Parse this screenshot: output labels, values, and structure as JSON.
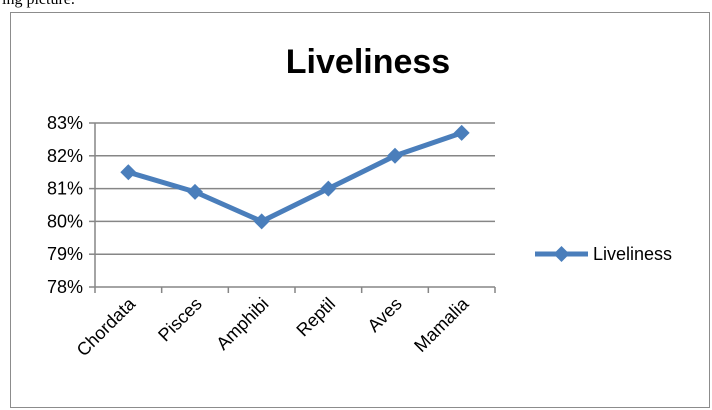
{
  "caption": "ing picture.",
  "chart_data": {
    "type": "line",
    "title": "Liveliness",
    "categories": [
      "Chordata",
      "Pisces",
      "Amphibi",
      "Reptil",
      "Aves",
      "Mamalia"
    ],
    "series": [
      {
        "name": "Liveliness",
        "values": [
          81.5,
          80.9,
          80.0,
          81.0,
          82.0,
          82.7
        ],
        "color": "#4a7ebb"
      }
    ],
    "ylim": [
      78,
      83
    ],
    "yticks": [
      "78%",
      "79%",
      "80%",
      "81%",
      "82%",
      "83%"
    ],
    "grid": true,
    "legend": "right"
  }
}
